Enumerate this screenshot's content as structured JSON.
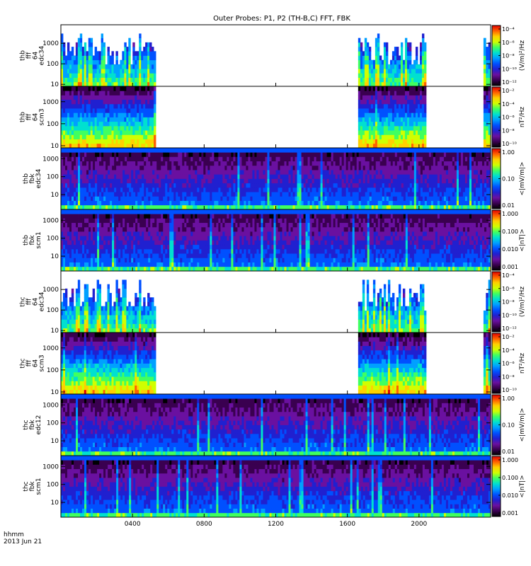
{
  "chart_data": {
    "type": "heatmap",
    "title": "Outer Probes: P1, P2 (TH-B,C) FFT, FBK",
    "x_axis": {
      "ticks": [
        "0400",
        "0800",
        "1200",
        "1600",
        "2000"
      ],
      "tick_hours": [
        4,
        8,
        12,
        16,
        20
      ],
      "range_hours": [
        0,
        24
      ],
      "label_line1": "hhmm",
      "label_line2": "2013 Jun 21"
    },
    "panels": [
      {
        "label_lines": [
          "thb",
          "fff",
          "64",
          "edc34"
        ],
        "y_ticks": [
          "10",
          "100",
          "1000"
        ],
        "y_tick_values": [
          10,
          100,
          1000
        ],
        "y_range": [
          8,
          8000
        ],
        "style": "fff_e",
        "data_intervals_hours": [
          [
            0,
            5.3
          ],
          [
            16.6,
            20.4
          ],
          [
            23.6,
            24
          ]
        ],
        "cbar_ticks": [
          "10⁻⁴",
          "10⁻⁶",
          "10⁻⁸",
          "10⁻¹⁰",
          "10⁻¹²"
        ],
        "cbar_unit": "(V/m)²/Hz"
      },
      {
        "label_lines": [
          "thb",
          "fff",
          "64",
          "scm3"
        ],
        "y_ticks": [
          "10",
          "100",
          "1000"
        ],
        "y_tick_values": [
          10,
          100,
          1000
        ],
        "y_range": [
          8,
          5000
        ],
        "style": "fff_b",
        "data_intervals_hours": [
          [
            0,
            5.3
          ],
          [
            16.6,
            20.4
          ],
          [
            23.6,
            24
          ]
        ],
        "cbar_ticks": [
          "10⁻²",
          "10⁻⁴",
          "10⁻⁶",
          "10⁻⁸",
          "10⁻¹⁰"
        ],
        "cbar_unit": "nT²/Hz"
      },
      {
        "label_lines": [
          "thb",
          "fbk",
          "edc34"
        ],
        "y_ticks": [
          "10",
          "100",
          "1000"
        ],
        "y_tick_values": [
          10,
          100,
          1000
        ],
        "y_range": [
          1.5,
          4000
        ],
        "style": "fbk",
        "data_intervals_hours": [
          [
            0,
            24
          ]
        ],
        "cbar_ticks": [
          "1.00",
          "0.10",
          "0.01"
        ],
        "cbar_unit": "<|mV/m|>"
      },
      {
        "label_lines": [
          "thb",
          "fbk",
          "scm1"
        ],
        "y_ticks": [
          "10",
          "100",
          "1000"
        ],
        "y_tick_values": [
          10,
          100,
          1000
        ],
        "y_range": [
          1.5,
          4000
        ],
        "style": "fbk",
        "data_intervals_hours": [
          [
            0,
            24
          ]
        ],
        "cbar_ticks": [
          "1.000",
          "0.100",
          "0.010",
          "0.001"
        ],
        "cbar_unit": "<|nT|>"
      },
      {
        "label_lines": [
          "thc",
          "fff",
          "64",
          "edc34"
        ],
        "y_ticks": [
          "10",
          "100",
          "1000"
        ],
        "y_tick_values": [
          10,
          100,
          1000
        ],
        "y_range": [
          8,
          8000
        ],
        "style": "fff_e",
        "data_intervals_hours": [
          [
            0,
            5.3
          ],
          [
            16.6,
            20.4
          ],
          [
            23.6,
            24
          ]
        ],
        "cbar_ticks": [
          "10⁻⁴",
          "10⁻⁶",
          "10⁻⁸",
          "10⁻¹⁰",
          "10⁻¹²"
        ],
        "cbar_unit": "(V/m)²/Hz"
      },
      {
        "label_lines": [
          "thc",
          "fff",
          "64",
          "scm3"
        ],
        "y_ticks": [
          "10",
          "100",
          "1000"
        ],
        "y_tick_values": [
          10,
          100,
          1000
        ],
        "y_range": [
          8,
          5000
        ],
        "style": "fff_b",
        "data_intervals_hours": [
          [
            0,
            5.3
          ],
          [
            16.6,
            20.4
          ],
          [
            23.6,
            24
          ]
        ],
        "cbar_ticks": [
          "10⁻²",
          "10⁻⁴",
          "10⁻⁶",
          "10⁻⁸",
          "10⁻¹⁰"
        ],
        "cbar_unit": "nT²/Hz"
      },
      {
        "label_lines": [
          "thc",
          "fbk",
          "edc12"
        ],
        "y_ticks": [
          "10",
          "100",
          "1000"
        ],
        "y_tick_values": [
          10,
          100,
          1000
        ],
        "y_range": [
          1.5,
          4000
        ],
        "style": "fbk",
        "data_intervals_hours": [
          [
            0,
            24
          ]
        ],
        "cbar_ticks": [
          "1.00",
          "0.10",
          "0.01"
        ],
        "cbar_unit": "<|mV/m|>"
      },
      {
        "label_lines": [
          "thc",
          "fbk",
          "scm1"
        ],
        "y_ticks": [
          "10",
          "100",
          "1000"
        ],
        "y_tick_values": [
          10,
          100,
          1000
        ],
        "y_range": [
          1.5,
          4000
        ],
        "style": "fbk",
        "data_intervals_hours": [
          [
            0,
            24
          ]
        ],
        "cbar_ticks": [
          "1.000",
          "0.100",
          "0.010",
          "0.001"
        ],
        "cbar_unit": "<|nT|>"
      }
    ],
    "colorscale": [
      "#000000",
      "#3a0050",
      "#6a10a0",
      "#2020d0",
      "#0050ff",
      "#00a0ff",
      "#00e0d0",
      "#40ff60",
      "#d0ff00",
      "#ffd000",
      "#ff6000",
      "#e00000"
    ]
  }
}
